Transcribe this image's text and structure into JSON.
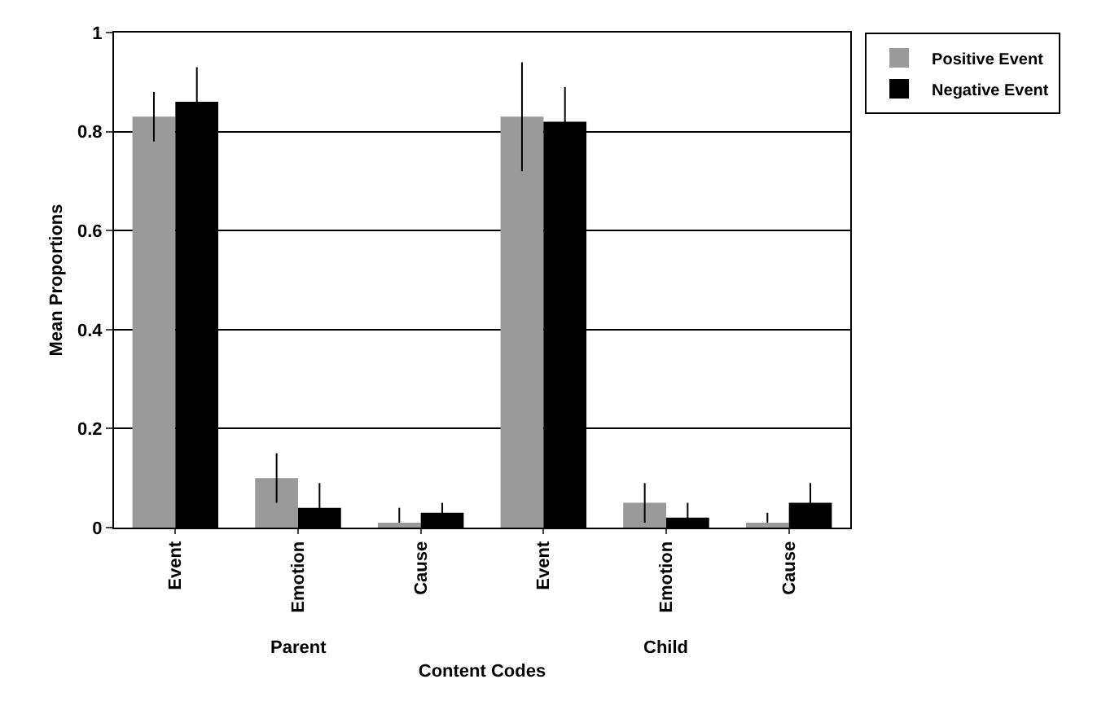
{
  "chart_data": {
    "type": "bar",
    "xlabel": "Content Codes",
    "ylabel": "Mean Proportions",
    "categories": [
      "Event",
      "Emotion",
      "Cause",
      "Event",
      "Emotion",
      "Cause"
    ],
    "series": [
      {
        "name": "Positive Event",
        "color": "#9a9a9a",
        "values": [
          0.83,
          0.1,
          0.01,
          0.83,
          0.05,
          0.01
        ],
        "errors": [
          0.05,
          0.05,
          [
            0.01,
            0.04
          ],
          0.11,
          0.04,
          [
            0.01,
            0.03
          ]
        ]
      },
      {
        "name": "Negative Event",
        "color": "#000000",
        "values": [
          0.86,
          0.04,
          0.03,
          0.82,
          0.02,
          0.05
        ],
        "errors": [
          0.07,
          0.05,
          0.02,
          0.07,
          0.03,
          0.04
        ]
      }
    ],
    "annotations": [
      "Parent",
      "Child"
    ],
    "ylim": [
      0,
      1
    ],
    "yticks": [
      0,
      0.2,
      0.4,
      0.6,
      0.8,
      1
    ],
    "grid": "y",
    "legend": "top right"
  }
}
